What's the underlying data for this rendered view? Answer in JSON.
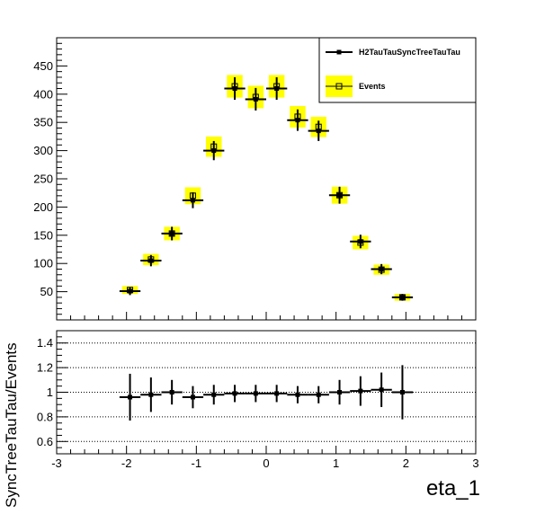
{
  "chart_data": [
    {
      "type": "scatter",
      "panel": "top",
      "xlabel": "eta_1",
      "x_range": [
        -3,
        3
      ],
      "ylim": [
        0,
        500
      ],
      "y_ticks": [
        50,
        100,
        150,
        200,
        250,
        300,
        350,
        400,
        450
      ],
      "x": [
        -1.95,
        -1.65,
        -1.35,
        -1.05,
        -0.75,
        -0.45,
        -0.15,
        0.15,
        0.45,
        0.75,
        1.05,
        1.35,
        1.65,
        1.95
      ],
      "bin_half_width": 0.15,
      "series": [
        {
          "name": "H2TauTauSyncTreeTauTau",
          "values": [
            51,
            105,
            153,
            212,
            300,
            410,
            391,
            410,
            354,
            335,
            221,
            139,
            90,
            40
          ],
          "errors": [
            7,
            10,
            12,
            14,
            17,
            20,
            20,
            20,
            19,
            18,
            15,
            12,
            9,
            6
          ]
        },
        {
          "name": "Events",
          "values": [
            53,
            107,
            153,
            220,
            307,
            414,
            395,
            414,
            360,
            342,
            221,
            137,
            89,
            40
          ],
          "band_errors": [
            7,
            10,
            12,
            15,
            18,
            20,
            20,
            20,
            19,
            18,
            15,
            12,
            9,
            6
          ]
        }
      ],
      "legend": "top-right"
    },
    {
      "type": "scatter",
      "panel": "ratio",
      "ylabel": "SyncTreeTauTau/Events",
      "ylim": [
        0.5,
        1.5
      ],
      "y_ticks": [
        0.6,
        0.8,
        1.0,
        1.2,
        1.4
      ],
      "y_tick_labels": [
        "0.6",
        "0.8",
        "1",
        "1.2",
        "1.4"
      ],
      "x_ticks": [
        -3,
        -2,
        -1,
        0,
        1,
        2,
        3
      ],
      "grid": true,
      "x": [
        -1.95,
        -1.65,
        -1.35,
        -1.05,
        -0.75,
        -0.45,
        -0.15,
        0.15,
        0.45,
        0.75,
        1.05,
        1.35,
        1.65,
        1.95
      ],
      "values": [
        0.96,
        0.98,
        1.0,
        0.96,
        0.98,
        0.99,
        0.99,
        0.99,
        0.98,
        0.98,
        1.0,
        1.01,
        1.02,
        1.0
      ],
      "errors": [
        0.19,
        0.14,
        0.1,
        0.09,
        0.08,
        0.07,
        0.07,
        0.07,
        0.07,
        0.07,
        0.1,
        0.12,
        0.14,
        0.22
      ]
    }
  ]
}
